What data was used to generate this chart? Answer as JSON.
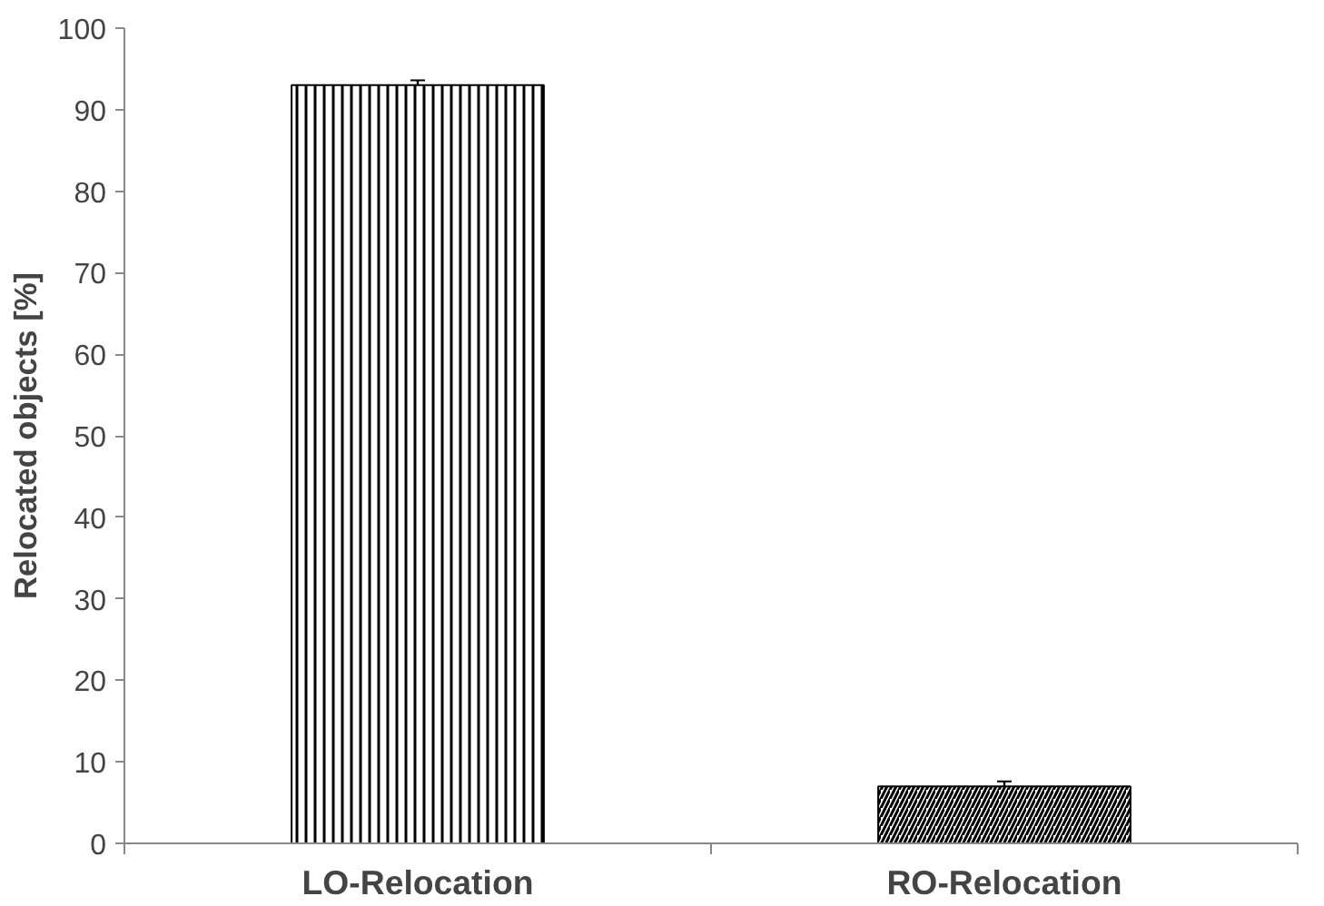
{
  "chart_data": {
    "type": "bar",
    "ylabel": "Relocated objects [%]",
    "categories": [
      "LO-Relocation",
      "RO-Relocation"
    ],
    "values": [
      93,
      7
    ],
    "errors": [
      0.6,
      0.6
    ],
    "colors": [
      "#000000",
      "#000000"
    ],
    "ylim": [
      0,
      100
    ],
    "yticks": [
      0,
      10,
      20,
      30,
      40,
      50,
      60,
      70,
      80,
      90,
      100
    ],
    "grid": false
  }
}
